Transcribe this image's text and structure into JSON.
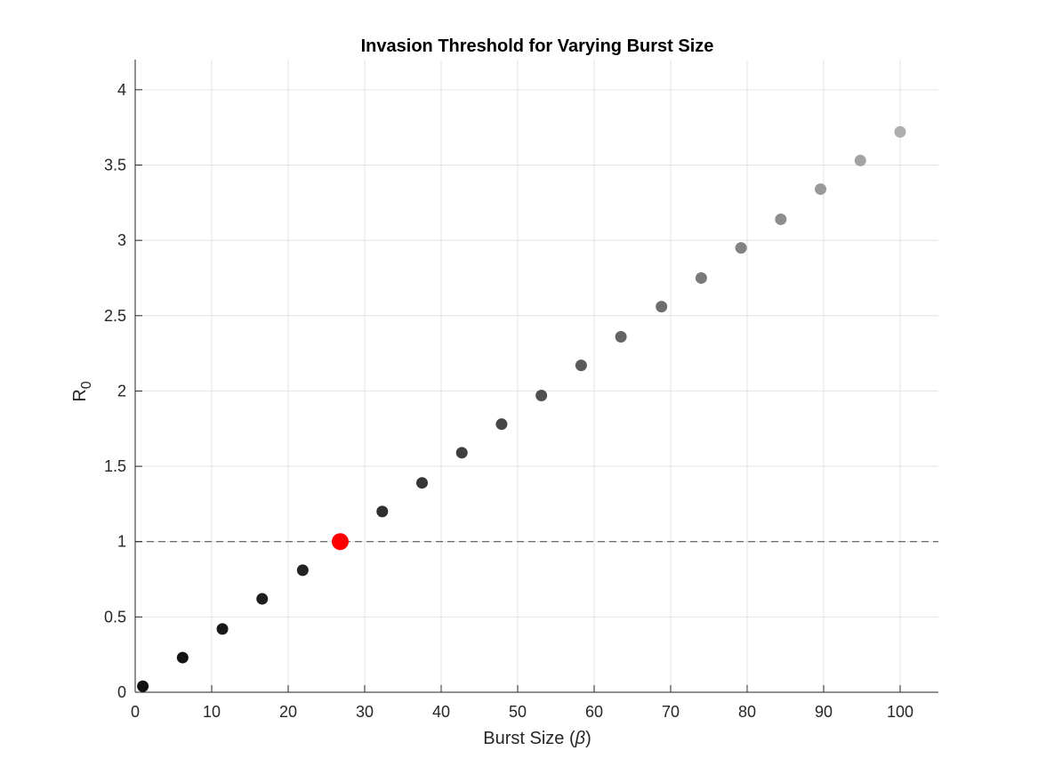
{
  "chart_data": {
    "type": "scatter",
    "title": "Invasion Threshold for Varying Burst Size",
    "xlabel": "Burst Size (",
    "xlabel_symbol": "β",
    "xlabel_close": ")",
    "ylabel": "R",
    "ylabel_sub": "0",
    "xlim": [
      0,
      105
    ],
    "ylim": [
      0,
      4.2
    ],
    "xticks": [
      0,
      10,
      20,
      30,
      40,
      50,
      60,
      70,
      80,
      90,
      100
    ],
    "yticks": [
      0,
      0.5,
      1,
      1.5,
      2,
      2.5,
      3,
      3.5,
      4
    ],
    "xtick_labels": [
      "0",
      "10",
      "20",
      "30",
      "40",
      "50",
      "60",
      "70",
      "80",
      "90",
      "100"
    ],
    "ytick_labels": [
      "0",
      "0.5",
      "1",
      "1.5",
      "2",
      "2.5",
      "3",
      "3.5",
      "4"
    ],
    "grid": true,
    "threshold_line": {
      "y": 1,
      "style": "dashed",
      "color": "#444444"
    },
    "highlight_color": "#ff0000",
    "points": [
      {
        "x": 1.0,
        "y": 0.04,
        "color": "#101010"
      },
      {
        "x": 6.2,
        "y": 0.23,
        "color": "#141414"
      },
      {
        "x": 11.4,
        "y": 0.42,
        "color": "#181818"
      },
      {
        "x": 16.6,
        "y": 0.62,
        "color": "#1e1e1e"
      },
      {
        "x": 21.9,
        "y": 0.81,
        "color": "#232323"
      },
      {
        "x": 26.8,
        "y": 1.0,
        "color": "#ff0000",
        "highlight": true
      },
      {
        "x": 32.3,
        "y": 1.2,
        "color": "#2f2f2f"
      },
      {
        "x": 37.5,
        "y": 1.39,
        "color": "#363636"
      },
      {
        "x": 42.7,
        "y": 1.59,
        "color": "#3e3e3e"
      },
      {
        "x": 47.9,
        "y": 1.78,
        "color": "#474747"
      },
      {
        "x": 53.1,
        "y": 1.97,
        "color": "#505050"
      },
      {
        "x": 58.3,
        "y": 2.17,
        "color": "#5a5a5a"
      },
      {
        "x": 63.5,
        "y": 2.36,
        "color": "#646464"
      },
      {
        "x": 68.8,
        "y": 2.56,
        "color": "#6e6e6e"
      },
      {
        "x": 74.0,
        "y": 2.75,
        "color": "#797979"
      },
      {
        "x": 79.2,
        "y": 2.95,
        "color": "#838383"
      },
      {
        "x": 84.4,
        "y": 3.14,
        "color": "#8e8e8e"
      },
      {
        "x": 89.6,
        "y": 3.34,
        "color": "#999999"
      },
      {
        "x": 94.8,
        "y": 3.53,
        "color": "#a3a3a3"
      },
      {
        "x": 100.0,
        "y": 3.72,
        "color": "#aeaeae"
      }
    ]
  }
}
